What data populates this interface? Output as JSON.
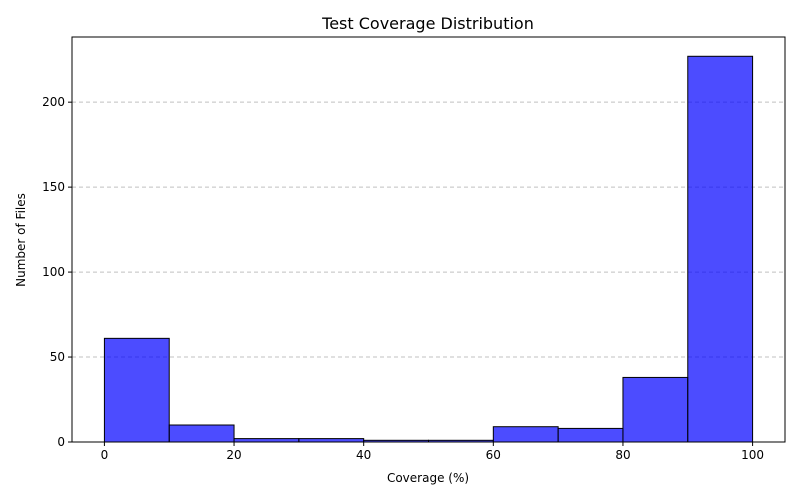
{
  "chart_data": {
    "type": "bar",
    "title": "Test Coverage Distribution",
    "xlabel": "Coverage (%)",
    "ylabel": "Number of Files",
    "bins": [
      {
        "start": 0,
        "end": 10,
        "value": 61
      },
      {
        "start": 10,
        "end": 20,
        "value": 10
      },
      {
        "start": 20,
        "end": 30,
        "value": 2
      },
      {
        "start": 30,
        "end": 40,
        "value": 2
      },
      {
        "start": 40,
        "end": 50,
        "value": 1
      },
      {
        "start": 50,
        "end": 60,
        "value": 1
      },
      {
        "start": 60,
        "end": 70,
        "value": 9
      },
      {
        "start": 70,
        "end": 80,
        "value": 8
      },
      {
        "start": 80,
        "end": 90,
        "value": 38
      },
      {
        "start": 90,
        "end": 100,
        "value": 227
      }
    ],
    "xlim": [
      -5,
      105
    ],
    "ylim": [
      0,
      238.35
    ],
    "x_ticks": [
      "0",
      "20",
      "40",
      "60",
      "80",
      "100"
    ],
    "y_ticks": [
      "0",
      "50",
      "100",
      "150",
      "200"
    ],
    "grid": "horizontal dashed",
    "colors": {
      "bar_fill": "#0000ff",
      "bar_edge": "#000000",
      "grid": "#c0c0c0"
    }
  }
}
